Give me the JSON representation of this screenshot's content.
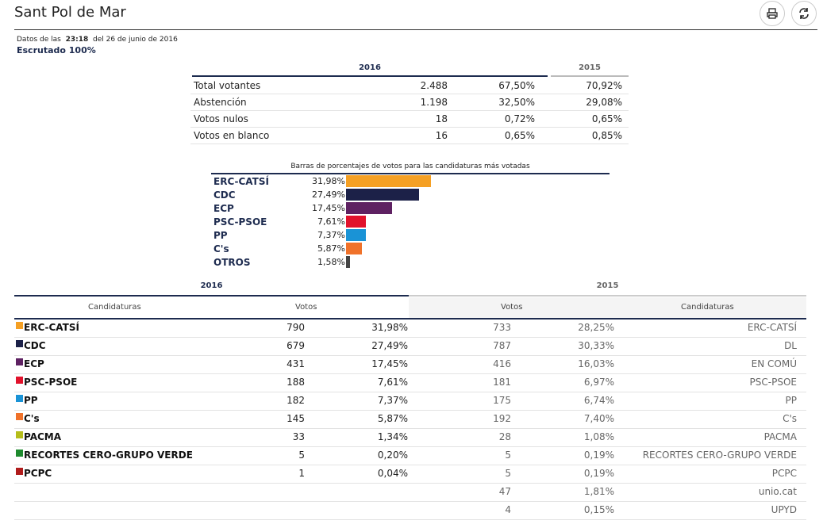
{
  "header": {
    "title": "Sant Pol de Mar",
    "print_icon": "print-icon",
    "refresh_icon": "refresh-icon"
  },
  "meta": {
    "prefix": "Datos de las",
    "time": "23:18",
    "date": "del 26 de junio de 2016",
    "scrutiny": "Escrutado 100%"
  },
  "summary": {
    "year_current": "2016",
    "year_previous": "2015",
    "rows": [
      {
        "label": "Total votantes",
        "count": "2.488",
        "pct": "67,50%",
        "pct_prev": "70,92%"
      },
      {
        "label": "Abstención",
        "count": "1.198",
        "pct": "32,50%",
        "pct_prev": "29,08%"
      },
      {
        "label": "Votos nulos",
        "count": "18",
        "pct": "0,72%",
        "pct_prev": "0,65%"
      },
      {
        "label": "Votos en blanco",
        "count": "16",
        "pct": "0,65%",
        "pct_prev": "0,85%"
      }
    ]
  },
  "bars": {
    "title": "Barras de porcentajes de votos para las candidaturas más votadas",
    "items": [
      {
        "name": "ERC-CATSÍ",
        "pct_label": "31,98%",
        "value": 31.98,
        "color": "#f5a024"
      },
      {
        "name": "CDC",
        "pct_label": "27,49%",
        "value": 27.49,
        "color": "#1c2148"
      },
      {
        "name": "ECP",
        "pct_label": "17,45%",
        "value": 17.45,
        "color": "#5e2162"
      },
      {
        "name": "PSC-PSOE",
        "pct_label": "7,61%",
        "value": 7.61,
        "color": "#e1122c"
      },
      {
        "name": "PP",
        "pct_label": "7,37%",
        "value": 7.37,
        "color": "#1a93d6"
      },
      {
        "name": "C's",
        "pct_label": "5,87%",
        "value": 5.87,
        "color": "#f0722a"
      },
      {
        "name": "OTROS",
        "pct_label": "1,58%",
        "value": 1.58,
        "color": "#444444"
      }
    ]
  },
  "results": {
    "year_current": "2016",
    "year_previous": "2015",
    "col_candidaturas": "Candidaturas",
    "col_votos": "Votos",
    "col_votos_prev": "Votos",
    "col_candidaturas_prev": "Candidaturas",
    "rows": [
      {
        "name": "ERC-CATSÍ",
        "color": "#f5a024",
        "votes": "790",
        "pct": "31,98%",
        "votes_prev": "733",
        "pct_prev": "28,25%",
        "name_prev": "ERC-CATSÍ"
      },
      {
        "name": "CDC",
        "color": "#1c2148",
        "votes": "679",
        "pct": "27,49%",
        "votes_prev": "787",
        "pct_prev": "30,33%",
        "name_prev": "DL"
      },
      {
        "name": "ECP",
        "color": "#5e2162",
        "votes": "431",
        "pct": "17,45%",
        "votes_prev": "416",
        "pct_prev": "16,03%",
        "name_prev": "EN COMÚ"
      },
      {
        "name": "PSC-PSOE",
        "color": "#e1122c",
        "votes": "188",
        "pct": "7,61%",
        "votes_prev": "181",
        "pct_prev": "6,97%",
        "name_prev": "PSC-PSOE"
      },
      {
        "name": "PP",
        "color": "#1a93d6",
        "votes": "182",
        "pct": "7,37%",
        "votes_prev": "175",
        "pct_prev": "6,74%",
        "name_prev": "PP"
      },
      {
        "name": "C's",
        "color": "#f0722a",
        "votes": "145",
        "pct": "5,87%",
        "votes_prev": "192",
        "pct_prev": "7,40%",
        "name_prev": "C's"
      },
      {
        "name": "PACMA",
        "color": "#b5bd1a",
        "votes": "33",
        "pct": "1,34%",
        "votes_prev": "28",
        "pct_prev": "1,08%",
        "name_prev": "PACMA"
      },
      {
        "name": "RECORTES CERO-GRUPO VERDE",
        "color": "#1e8a2e",
        "votes": "5",
        "pct": "0,20%",
        "votes_prev": "5",
        "pct_prev": "0,19%",
        "name_prev": "RECORTES CERO-GRUPO VERDE"
      },
      {
        "name": "PCPC",
        "color": "#b01c1c",
        "votes": "1",
        "pct": "0,04%",
        "votes_prev": "5",
        "pct_prev": "0,19%",
        "name_prev": "PCPC"
      },
      {
        "name": "",
        "color": "",
        "votes": "",
        "pct": "",
        "votes_prev": "47",
        "pct_prev": "1,81%",
        "name_prev": "unio.cat"
      },
      {
        "name": "",
        "color": "",
        "votes": "",
        "pct": "",
        "votes_prev": "4",
        "pct_prev": "0,15%",
        "name_prev": "UPYD"
      }
    ]
  }
}
